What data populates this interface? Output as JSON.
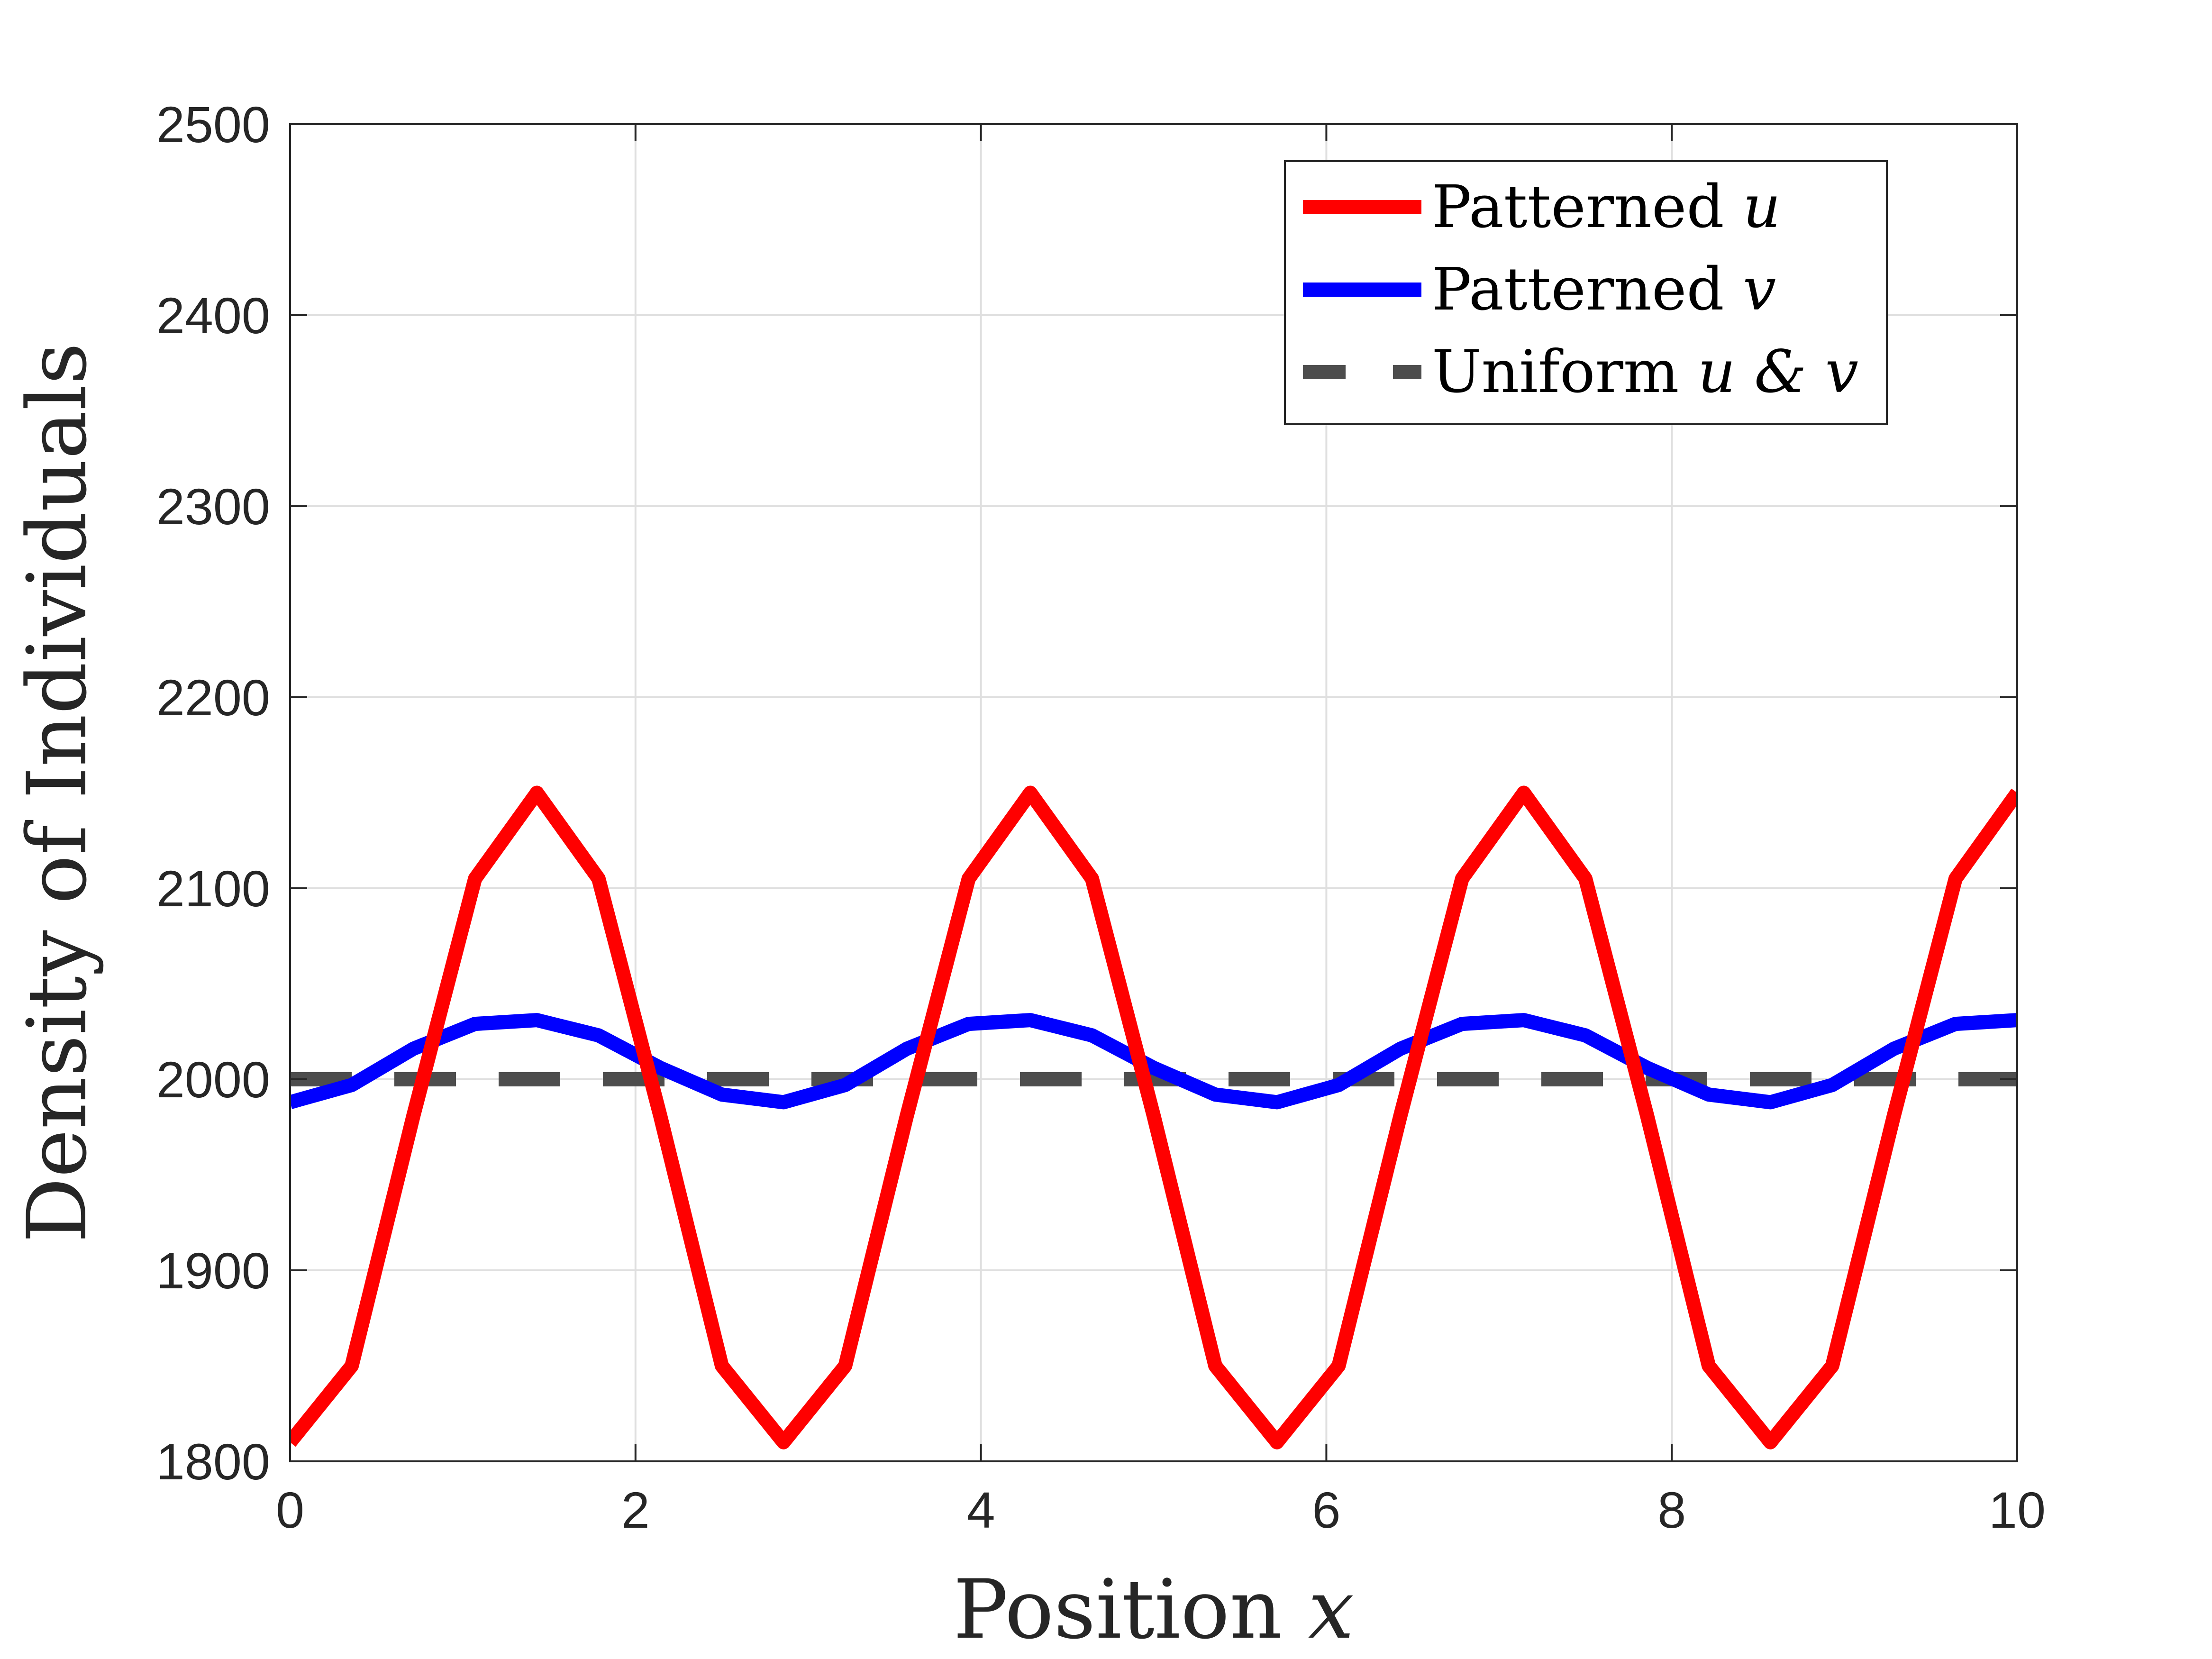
{
  "chart_data": {
    "type": "line",
    "xlabel": "Position",
    "xlabel_var": "x",
    "ylabel": "Density of Individuals",
    "xlim": [
      0,
      10
    ],
    "ylim": [
      1800,
      2500
    ],
    "xticks": [
      0,
      2,
      4,
      6,
      8,
      10
    ],
    "xtick_labels": [
      "0",
      "2",
      "4",
      "6",
      "8",
      "10"
    ],
    "yticks": [
      1800,
      1900,
      2000,
      2100,
      2200,
      2300,
      2400,
      2500
    ],
    "ytick_labels": [
      "1800",
      "1900",
      "2000",
      "2100",
      "2200",
      "2300",
      "2400",
      "2500"
    ],
    "grid": true,
    "legend_position": "top-right",
    "legend": [
      {
        "text": "Patterned",
        "var": "u"
      },
      {
        "text": "Patterned",
        "var": "v"
      },
      {
        "text": "Uniform",
        "var": "u & v"
      }
    ],
    "x": [
      0.0,
      0.357,
      0.714,
      1.071,
      1.429,
      1.786,
      2.143,
      2.5,
      2.857,
      3.214,
      3.571,
      3.929,
      4.286,
      4.643,
      5.0,
      5.357,
      5.714,
      6.071,
      6.429,
      6.786,
      7.143,
      7.5,
      7.857,
      8.214,
      8.571,
      8.929,
      9.286,
      9.643,
      10.0
    ],
    "series": [
      {
        "key": "u",
        "color": "#ff0000",
        "style": "solid",
        "values": [
          1810,
          1850,
          1981,
          2105,
          2150,
          2105,
          1981,
          1850,
          1810,
          1850,
          1981,
          2105,
          2150,
          2105,
          1981,
          1850,
          1810,
          1850,
          1981,
          2105,
          2150,
          2105,
          1981,
          1850,
          1810,
          1850,
          1981,
          2105,
          2150
        ]
      },
      {
        "key": "v",
        "color": "#0000ff",
        "style": "solid",
        "values": [
          1988,
          1997,
          2016,
          2029,
          2031,
          2023,
          2006,
          1992,
          1988,
          1997,
          2016,
          2029,
          2031,
          2023,
          2006,
          1992,
          1988,
          1997,
          2016,
          2029,
          2031,
          2023,
          2006,
          1992,
          1988,
          1997,
          2016,
          2029,
          2031
        ]
      },
      {
        "key": "uniform",
        "color": "#4d4d4d",
        "style": "dashed",
        "values": [
          2000,
          2000,
          2000,
          2000,
          2000,
          2000,
          2000,
          2000,
          2000,
          2000,
          2000,
          2000,
          2000,
          2000,
          2000,
          2000,
          2000,
          2000,
          2000,
          2000,
          2000,
          2000,
          2000,
          2000,
          2000,
          2000,
          2000,
          2000,
          2000
        ]
      }
    ]
  }
}
